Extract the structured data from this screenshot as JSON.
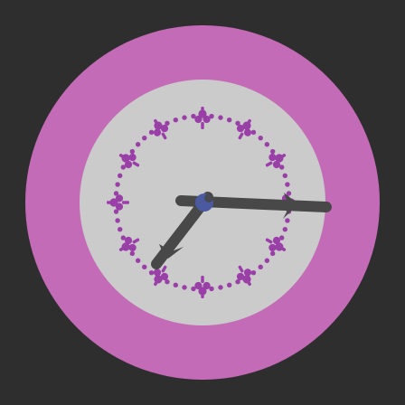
{
  "colors": {
    "background": "#2f2e2f",
    "outer_ring": "#c46bb8",
    "dial_face": "#cbcbcb",
    "markers": "#9a3ea8",
    "hands": "#484848",
    "center_cap": "#4b5aa0"
  },
  "clock": {
    "time_shown": "7:16",
    "hour_markers": 12,
    "minute_dots_per_gap": 4
  }
}
